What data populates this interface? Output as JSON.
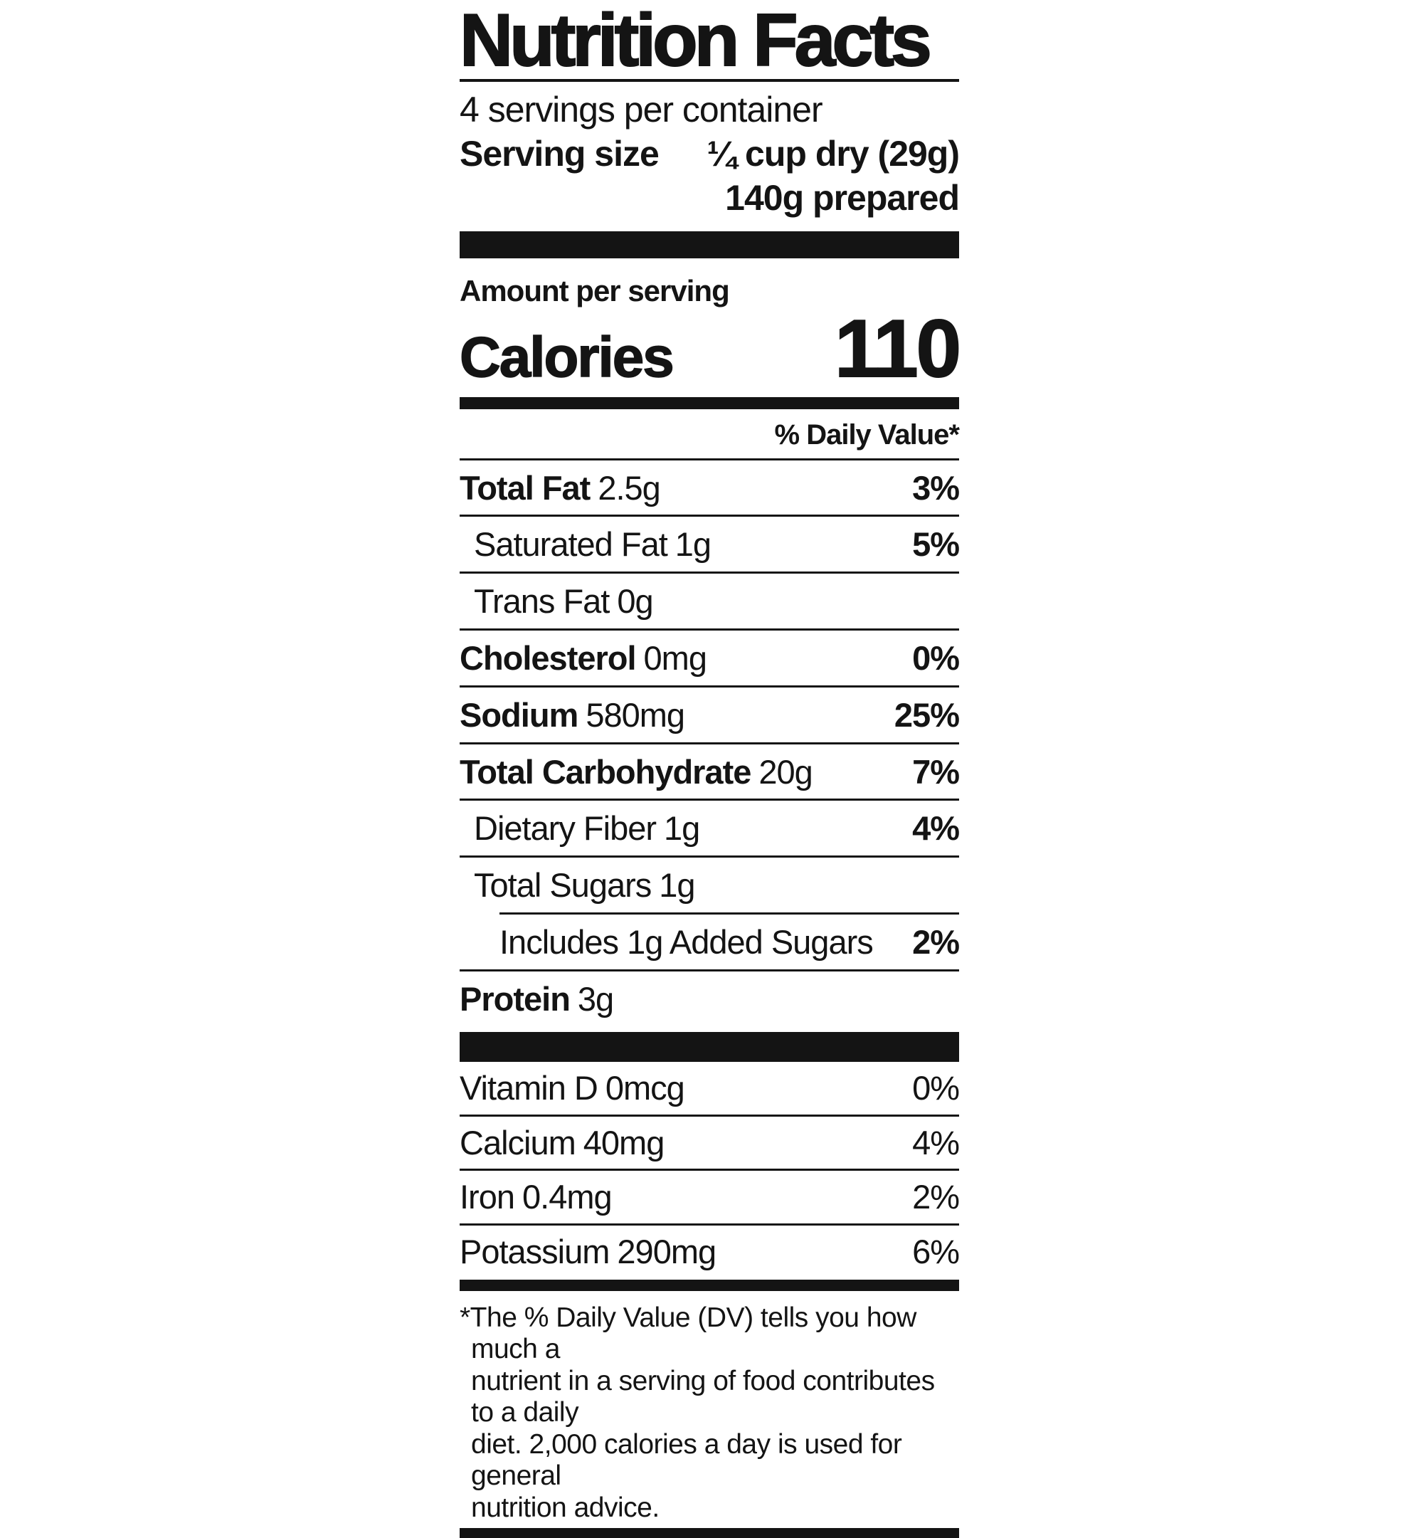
{
  "colors": {
    "ink": "#141414",
    "background": "#ffffff"
  },
  "title": "Nutrition Facts",
  "servings_per_container": "4 servings per container",
  "serving_size": {
    "label": "Serving size",
    "value": "¼ cup dry (29g)",
    "prepared": "140g prepared"
  },
  "calories": {
    "section_label": "Amount per serving",
    "label": "Calories",
    "value": "110"
  },
  "daily_value_header": "% Daily Value*",
  "nutrients": [
    {
      "name": "Total Fat",
      "amount": "2.5g",
      "dv": "3%"
    },
    {
      "name": "Saturated Fat",
      "amount": "1g",
      "dv": "5%"
    },
    {
      "name": "Trans Fat",
      "amount": "0g",
      "dv": ""
    },
    {
      "name": "Cholesterol",
      "amount": "0mg",
      "dv": "0%"
    },
    {
      "name": "Sodium",
      "amount": "580mg",
      "dv": "25%"
    },
    {
      "name": "Total Carbohydrate",
      "amount": "20g",
      "dv": "7%"
    },
    {
      "name": "Dietary Fiber",
      "amount": "1g",
      "dv": "4%"
    },
    {
      "name": "Total Sugars",
      "amount": "1g",
      "dv": ""
    },
    {
      "name": "Includes 1g Added Sugars",
      "amount": "",
      "dv": "2%"
    },
    {
      "name": "Protein",
      "amount": "3g",
      "dv": ""
    }
  ],
  "micronutrients": [
    {
      "name": "Vitamin D",
      "amount": "0mcg",
      "dv": "0%"
    },
    {
      "name": "Calcium",
      "amount": "40mg",
      "dv": "4%"
    },
    {
      "name": "Iron",
      "amount": "0.4mg",
      "dv": "2%"
    },
    {
      "name": "Potassium",
      "amount": "290mg",
      "dv": "6%"
    }
  ],
  "footnote": {
    "lines": [
      "*The % Daily Value (DV) tells you how much a",
      "nutrient in a serving of food contributes to a daily",
      "diet. 2,000 calories a day is used for general",
      "nutrition advice."
    ]
  }
}
